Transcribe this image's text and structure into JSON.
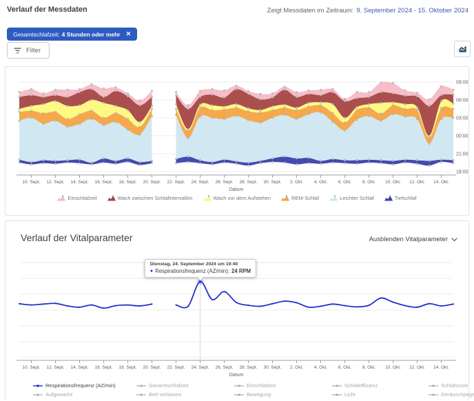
{
  "header": {
    "title": "Verlauf der Messdaten",
    "range_label": "Zeigt Messdaten im Zeitraum:",
    "range_value": "9. September 2024 - 15. Oktober 2024"
  },
  "filter_chip": {
    "label": "Gesamtschlafzeit:",
    "value": "4 Stunden oder mehr",
    "close_icon": "✕"
  },
  "filter_button": {
    "label": "Filter"
  },
  "vitals_section": {
    "title": "Verlauf der Vitalparameter",
    "hide_label": "Ausblenden Vitalparameter",
    "tooltip": {
      "title": "Dienstag, 24. September 2024 um 19:40",
      "series_label": "Respirationsfrequenz (AZ/min):",
      "value": "24 RPM"
    }
  },
  "colors": {
    "accent_blue": "#2e5bbf",
    "date_blue": "#3d59b2",
    "line_blue": "#2130d2",
    "grid": "#ececec",
    "axis": "#9e9e9e",
    "tick_text": "#616161"
  },
  "chart_data": [
    {
      "type": "area",
      "stacked": true,
      "title": "Verlauf der Messdaten",
      "xlabel": "Datum",
      "x_tick_labels": [
        "10. Sept.",
        "12. Sept.",
        "14. Sept.",
        "16. Sept.",
        "18. Sept.",
        "20. Sept.",
        "22. Sept.",
        "24. Sept.",
        "26. Sept.",
        "28. Sept.",
        "30. Sept.",
        "2. Okt.",
        "4. Okt.",
        "6. Okt.",
        "8. Okt.",
        "10. Okt.",
        "12. Okt.",
        "14. Okt."
      ],
      "x_range_days": [
        "2024-09-09",
        "2024-10-15"
      ],
      "gap_day": "2024-09-21",
      "y_ticks": [
        "18:00",
        "21:00",
        "00:00",
        "03:00",
        "06:00",
        "09:00"
      ],
      "y_hours_per_tick": 3,
      "baseline_hours_after_18": [
        1.5,
        1.2,
        1.4,
        1.3,
        1.5,
        1.4,
        1.2,
        1.5,
        1.3,
        1.6,
        1.1,
        1.4,
        null,
        1.4,
        1.6,
        1.4,
        1.2,
        1.5,
        1.3,
        1.0,
        1.4,
        1.6,
        1.5,
        1.2,
        1.4,
        1.3,
        1.5,
        1.4,
        1.3,
        1.5,
        1.4,
        1.2,
        1.5,
        1.3,
        1.0,
        1.6,
        1.4
      ],
      "series": [
        {
          "name": "Tiefschlaf",
          "color": "#3b3fad",
          "values": [
            0.5,
            0.4,
            0.5,
            0.5,
            0.4,
            0.6,
            0.3,
            0.7,
            0.5,
            0.6,
            0.5,
            0.4,
            null,
            0.7,
            0.9,
            0.5,
            0.4,
            0.5,
            0.4,
            0.5,
            0.4,
            0.6,
            1.0,
            1.0,
            0.9,
            0.5,
            0.6,
            0.5,
            0.6,
            0.5,
            0.5,
            0.6,
            0.5,
            0.6,
            0.8,
            0.4,
            0.5
          ]
        },
        {
          "name": "Leichter Schlaf",
          "color": "#cfe7f1",
          "values": [
            6.5,
            7.4,
            6.1,
            6.7,
            5.6,
            6.0,
            7.3,
            5.6,
            6.5,
            4.8,
            4.6,
            7.5,
            null,
            7.4,
            3.1,
            7.3,
            7.4,
            6.8,
            7.6,
            7.1,
            6.4,
            6.8,
            7.0,
            6.6,
            7.3,
            8.1,
            6.2,
            5.0,
            6.8,
            7.3,
            6.6,
            7.8,
            7.2,
            6.9,
            2.9,
            6.8,
            7.1
          ]
        },
        {
          "name": "REM-Schlaf",
          "color": "#f4a445",
          "values": [
            1.5,
            1.2,
            1.8,
            1.5,
            1.3,
            1.6,
            1.4,
            1.2,
            1.5,
            1.8,
            1.3,
            1.2,
            null,
            1.0,
            1.2,
            1.5,
            1.3,
            1.6,
            1.4,
            1.5,
            1.7,
            1.3,
            1.2,
            1.5,
            1.3,
            1.2,
            1.5,
            1.3,
            1.6,
            1.4,
            1.2,
            1.5,
            1.3,
            1.5,
            1.0,
            1.8,
            1.5
          ]
        },
        {
          "name": "Wach vor dem Aufstehen",
          "color": "#fdf97e",
          "values": [
            0.5,
            0.8,
            1.5,
            1.8,
            2.2,
            1.5,
            1.8,
            2.5,
            1.2,
            1.5,
            0.8,
            0.5,
            null,
            0.8,
            0.3,
            0.5,
            0.8,
            0.5,
            0.6,
            0.5,
            0.4,
            0.6,
            0.5,
            0.4,
            0.6,
            0.5,
            1.5,
            0.8,
            0.5,
            0.6,
            1.8,
            0.5,
            0.8,
            0.5,
            0.3,
            1.2,
            0.9
          ]
        },
        {
          "name": "Wach zwischen Schlafintervallen",
          "color": "#a64445",
          "values": [
            2.0,
            1.8,
            1.2,
            1.0,
            1.5,
            2.2,
            1.8,
            1.0,
            2.5,
            2.3,
            2.8,
            1.5,
            null,
            1.5,
            3.4,
            1.3,
            1.8,
            1.5,
            2.5,
            2.4,
            1.8,
            1.5,
            2.5,
            1.8,
            1.5,
            1.2,
            2.0,
            2.8,
            1.5,
            1.2,
            1.8,
            1.5,
            1.4,
            1.8,
            5.0,
            1.0,
            1.5
          ]
        },
        {
          "name": "Einschlafzeit",
          "color": "#f4bac6",
          "values": [
            0.8,
            1.0,
            0.6,
            0.9,
            1.2,
            0.5,
            0.8,
            1.4,
            0.6,
            0.5,
            0.8,
            1.0,
            null,
            0.5,
            0.6,
            1.0,
            0.9,
            1.2,
            0.6,
            0.5,
            0.9,
            0.7,
            0.5,
            0.8,
            0.6,
            0.9,
            0.5,
            0.4,
            1.0,
            0.8,
            1.6,
            1.7,
            0.9,
            0.6,
            1.1,
            1.5,
            0.8
          ]
        }
      ]
    },
    {
      "type": "line",
      "title": "Verlauf der Vitalparameter",
      "xlabel": "Datum",
      "x_tick_labels": [
        "10. Sept.",
        "12. Sept.",
        "14. Sept.",
        "16. Sept.",
        "18. Sept.",
        "20. Sept.",
        "22. Sept.",
        "24. Sept.",
        "26. Sept.",
        "28. Sept.",
        "30. Sept.",
        "2. Okt.",
        "4. Okt.",
        "6. Okt.",
        "8. Okt.",
        "10. Okt.",
        "12. Okt.",
        "14. Okt."
      ],
      "ylim": [
        0,
        30
      ],
      "grid_step": 5,
      "unit": "RPM",
      "series_name": "Respirationsfrequenz (AZ/min)",
      "values": [
        17,
        16.6,
        16.9,
        17.1,
        16.3,
        15.9,
        16.6,
        15.6,
        16.4,
        16.6,
        16.3,
        16.9,
        null,
        16.6,
        16.2,
        24,
        18.3,
        20.8,
        17.4,
        16.5,
        16.2,
        17,
        17.8,
        17.3,
        15.9,
        16.2,
        16.9,
        16.4,
        16.0,
        16.5,
        18.8,
        17.5,
        16.4,
        15.9,
        17.0,
        16.3,
        16.9
      ],
      "highlight": {
        "index": 15,
        "value": 24
      },
      "legend": [
        {
          "label": "Respirationsfrequenz (AZ/min)",
          "active": true
        },
        {
          "label": "Gesamtschlafzeit",
          "active": false
        },
        {
          "label": "Einschlafzeit",
          "active": false
        },
        {
          "label": "Schlafeffizienz",
          "active": false
        },
        {
          "label": "Schlafscore",
          "active": false
        },
        {
          "label": "Aufgewacht",
          "active": false
        },
        {
          "label": "Bett verlassen",
          "active": false
        },
        {
          "label": "Bewegung",
          "active": false
        },
        {
          "label": "Licht",
          "active": false
        },
        {
          "label": "Geräuschpegel",
          "active": false
        }
      ]
    }
  ]
}
